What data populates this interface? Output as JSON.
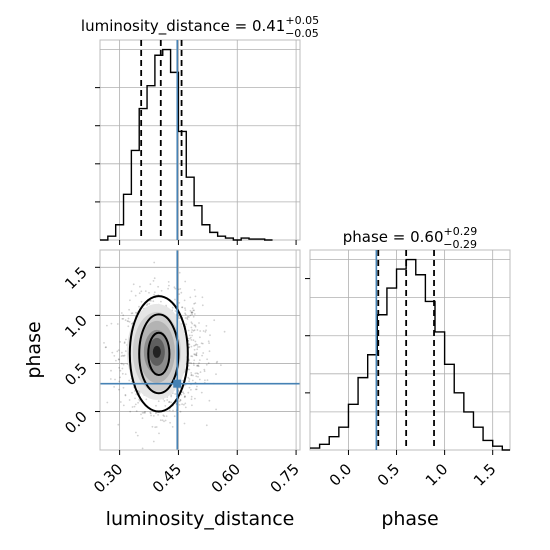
{
  "chart_data": [
    {
      "type": "histogram",
      "panel": "luminosity_distance marginal",
      "title": {
        "prefix": "luminosity_distance = ",
        "value": "0.41",
        "plus": "+0.05",
        "minus": "−0.05"
      },
      "xlim": [
        0.25,
        0.76
      ],
      "ylim": [
        0,
        1.05
      ],
      "grid": true,
      "bin_edges": [
        0.25,
        0.27,
        0.29,
        0.31,
        0.33,
        0.35,
        0.37,
        0.39,
        0.41,
        0.43,
        0.45,
        0.47,
        0.49,
        0.51,
        0.53,
        0.55,
        0.57,
        0.59,
        0.61,
        0.63,
        0.65,
        0.67,
        0.69
      ],
      "counts": [
        0.0,
        0.02,
        0.08,
        0.24,
        0.47,
        0.69,
        0.81,
        0.97,
        1.0,
        0.88,
        0.57,
        0.33,
        0.18,
        0.08,
        0.04,
        0.02,
        0.01,
        0.0,
        0.01,
        0.005,
        0.005,
        0.0
      ],
      "quantile_lines": [
        0.355,
        0.405,
        0.458
      ],
      "truth": 0.447,
      "truth_color": "#4682b4"
    },
    {
      "type": "scatter-contour",
      "panel": "luminosity_distance vs phase",
      "xlabel": "luminosity_distance",
      "ylabel": "phase",
      "xlim": [
        0.25,
        0.76
      ],
      "ylim": [
        -0.4,
        1.68
      ],
      "x_ticks": [
        "0.30",
        "0.45",
        "0.60",
        "0.75"
      ],
      "y_ticks": [
        "0.0",
        "0.5",
        "1.0",
        "1.5"
      ],
      "grid": true,
      "scatter_center": [
        0.41,
        0.6
      ],
      "scatter_spread": [
        0.05,
        0.29
      ],
      "scatter_points": 1400,
      "contours": [
        {
          "cx": 0.4,
          "cy": 0.6,
          "rx": 0.074,
          "ry": 0.6
        },
        {
          "cx": 0.4,
          "cy": 0.6,
          "rx": 0.05,
          "ry": 0.41
        },
        {
          "cx": 0.4,
          "cy": 0.6,
          "rx": 0.027,
          "ry": 0.22
        }
      ],
      "density_center": [
        0.395,
        0.62
      ],
      "truth": {
        "x": 0.447,
        "y": 0.29
      },
      "truth_color": "#4682b4"
    },
    {
      "type": "histogram",
      "panel": "phase marginal",
      "title": {
        "prefix": "phase = ",
        "value": "0.60",
        "plus": "+0.29",
        "minus": "−0.29"
      },
      "xlabel": "phase",
      "xlim": [
        -0.4,
        1.68
      ],
      "ylim": [
        0,
        1.05
      ],
      "x_ticks": [
        "0.0",
        "0.5",
        "1.0",
        "1.5"
      ],
      "grid": true,
      "bin_edges": [
        -0.4,
        -0.3,
        -0.2,
        -0.1,
        0.0,
        0.1,
        0.2,
        0.3,
        0.4,
        0.5,
        0.6,
        0.7,
        0.8,
        0.9,
        1.0,
        1.1,
        1.2,
        1.3,
        1.4,
        1.5,
        1.6,
        1.68
      ],
      "counts": [
        0.01,
        0.03,
        0.07,
        0.12,
        0.24,
        0.38,
        0.5,
        0.71,
        0.85,
        0.95,
        1.0,
        0.92,
        0.78,
        0.62,
        0.45,
        0.3,
        0.2,
        0.12,
        0.05,
        0.02,
        0.0
      ],
      "quantile_lines": [
        0.31,
        0.6,
        0.89
      ],
      "truth": 0.29,
      "truth_color": "#4682b4"
    }
  ]
}
